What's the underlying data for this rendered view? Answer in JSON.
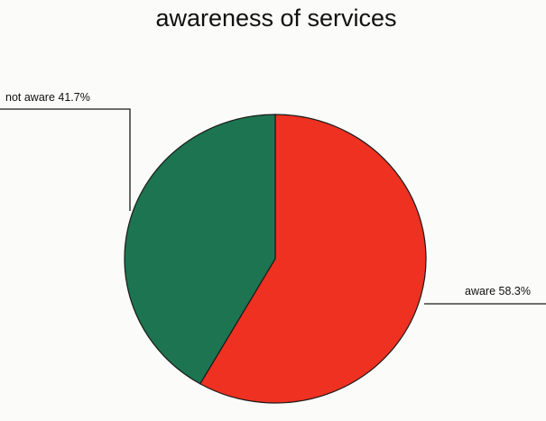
{
  "chart_data": {
    "type": "pie",
    "title": "awareness of services",
    "series": [
      {
        "values": [
          58.3,
          41.7
        ]
      }
    ],
    "categories": [
      "aware",
      "not aware"
    ],
    "slices": [
      {
        "category": "aware",
        "value": 58.3,
        "label": "aware 58.3%",
        "color": "#ee3121"
      },
      {
        "category": "not aware",
        "value": 41.7,
        "label": "not aware 41.7%",
        "color": "#1d7451"
      }
    ],
    "legend": "none",
    "start": "top",
    "direction": "clockwise"
  }
}
